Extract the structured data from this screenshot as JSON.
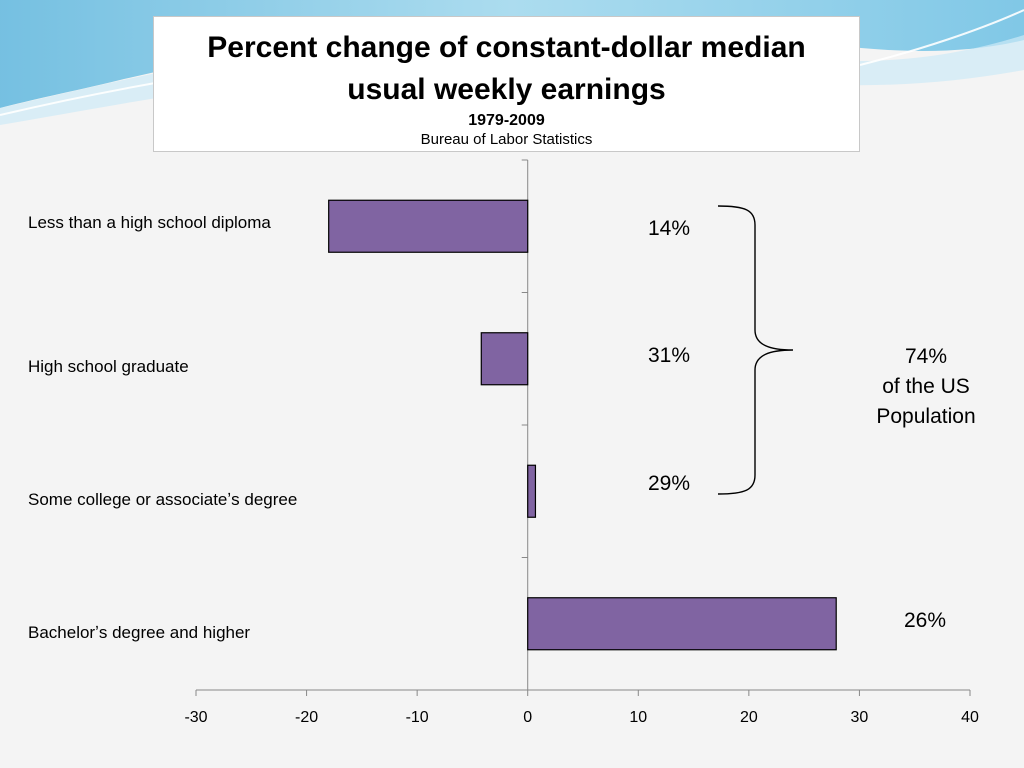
{
  "colors": {
    "bar_fill": "#8064a2",
    "bar_stroke": "#000000",
    "axis": "#888888",
    "title_box_bg": "#ffffff"
  },
  "title": {
    "main": "Percent change of constant-dollar median usual weekly earnings",
    "years": "1979-2009",
    "source": "Bureau of Labor Statistics"
  },
  "chart_data": {
    "type": "bar",
    "orientation": "horizontal",
    "title": "Percent change of constant-dollar median usual weekly earnings",
    "subtitle": "1979-2009",
    "categories": [
      "Less than a high school diploma",
      "High school graduate",
      "Some college or associateʼs degree",
      "Bachelorʼs degree and higher"
    ],
    "values": [
      -18.0,
      -4.2,
      0.7,
      27.9
    ],
    "xlim": [
      -30,
      40
    ],
    "xticks": [
      "-30",
      "-20",
      "-10",
      "0",
      "10",
      "20",
      "30",
      "40"
    ],
    "grid": false,
    "legend": "none"
  },
  "annotations": {
    "shares": [
      "14%",
      "31%",
      "29%",
      "26%"
    ],
    "bracket_total": [
      "74%",
      "of the US",
      "Population"
    ]
  }
}
